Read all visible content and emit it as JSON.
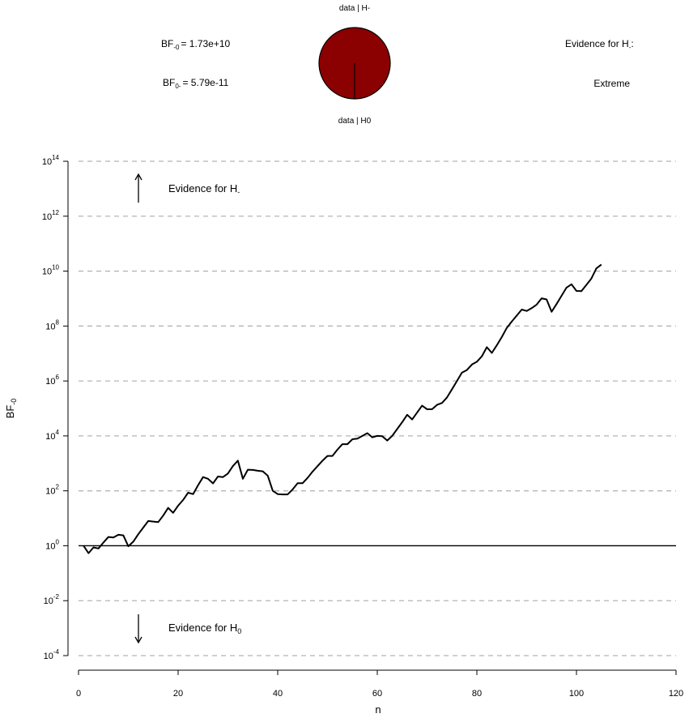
{
  "header": {
    "pie_top_label": "data | H-",
    "pie_bottom_label": "data | H0",
    "bf_label_1_main": "BF",
    "bf_label_1_sub": "-0",
    "bf_value_1": "= 1.73e+10",
    "bf_label_2_main": "BF",
    "bf_label_2_sub": "0-",
    "bf_value_2": "= 5.79e-11",
    "evidence_label_main": "Evidence for H",
    "evidence_label_sub": "-",
    "evidence_label_suffix": ":",
    "evidence_category": "Extreme",
    "pie": {
      "slices": [
        {
          "name": "data | H-",
          "value": 1.0,
          "color": "#8b0000"
        },
        {
          "name": "data | H0",
          "value": 5.79e-11,
          "color": "#ffffff"
        }
      ]
    }
  },
  "chart_data": {
    "type": "line",
    "xlabel": "n",
    "ylabel_main": "BF",
    "ylabel_sub": "-0",
    "y_scale": "log10",
    "xlim": [
      0,
      120
    ],
    "ylim_log10": [
      -4,
      14
    ],
    "x_ticks": [
      0,
      20,
      40,
      60,
      80,
      100,
      120
    ],
    "y_ticks_log10": [
      -4,
      -2,
      0,
      2,
      4,
      6,
      8,
      10,
      12,
      14
    ],
    "y_tick_base": "10",
    "gridlines": "dashed at y ticks",
    "reference_line_log10": 0,
    "annotation_up_main": "Evidence for H",
    "annotation_up_sub": "-",
    "annotation_down_main": "Evidence for H",
    "annotation_down_sub": "0",
    "series": [
      {
        "x": [
          1,
          2,
          3,
          4,
          5,
          6,
          7,
          8,
          9,
          10,
          11,
          12,
          13,
          14,
          15,
          16,
          17,
          18,
          19,
          20,
          21,
          22,
          23,
          24,
          25,
          26,
          27,
          28,
          29,
          30,
          31,
          32,
          33,
          34,
          35,
          36,
          37,
          38,
          39,
          40,
          41,
          42,
          43,
          44,
          45,
          46,
          47,
          48,
          49,
          50,
          51,
          52,
          53,
          54,
          55,
          56,
          57,
          58,
          59,
          60,
          61,
          62,
          63,
          64,
          65,
          66,
          67,
          68,
          69,
          70,
          71,
          72,
          73,
          74,
          75,
          76,
          77,
          78,
          79,
          80,
          81,
          82,
          83,
          84,
          85,
          86,
          87,
          88,
          89,
          90,
          91,
          92,
          93,
          94,
          95,
          96,
          97,
          98,
          99,
          100,
          101,
          102,
          103,
          104,
          105
        ],
        "log10_y": [
          0.0,
          -0.27,
          -0.06,
          -0.1,
          0.12,
          0.32,
          0.3,
          0.4,
          0.38,
          -0.02,
          0.15,
          0.42,
          0.66,
          0.9,
          0.88,
          0.86,
          1.1,
          1.38,
          1.2,
          1.46,
          1.67,
          1.93,
          1.88,
          2.2,
          2.5,
          2.44,
          2.27,
          2.52,
          2.5,
          2.63,
          2.9,
          3.1,
          2.44,
          2.77,
          2.76,
          2.73,
          2.71,
          2.55,
          2.0,
          1.88,
          1.87,
          1.87,
          2.05,
          2.28,
          2.28,
          2.47,
          2.7,
          2.9,
          3.1,
          3.27,
          3.27,
          3.5,
          3.7,
          3.7,
          3.88,
          3.9,
          4.0,
          4.1,
          3.95,
          4.0,
          3.99,
          3.83,
          4.0,
          4.25,
          4.5,
          4.77,
          4.6,
          4.85,
          5.1,
          4.97,
          4.97,
          5.13,
          5.2,
          5.4,
          5.7,
          6.0,
          6.3,
          6.4,
          6.6,
          6.7,
          6.9,
          7.23,
          7.02,
          7.3,
          7.6,
          7.93,
          8.16,
          8.38,
          8.6,
          8.55,
          8.65,
          8.78,
          9.01,
          8.97,
          8.52,
          8.8,
          9.1,
          9.4,
          9.52,
          9.28,
          9.27,
          9.5,
          9.73,
          10.1,
          10.24
        ]
      }
    ]
  }
}
